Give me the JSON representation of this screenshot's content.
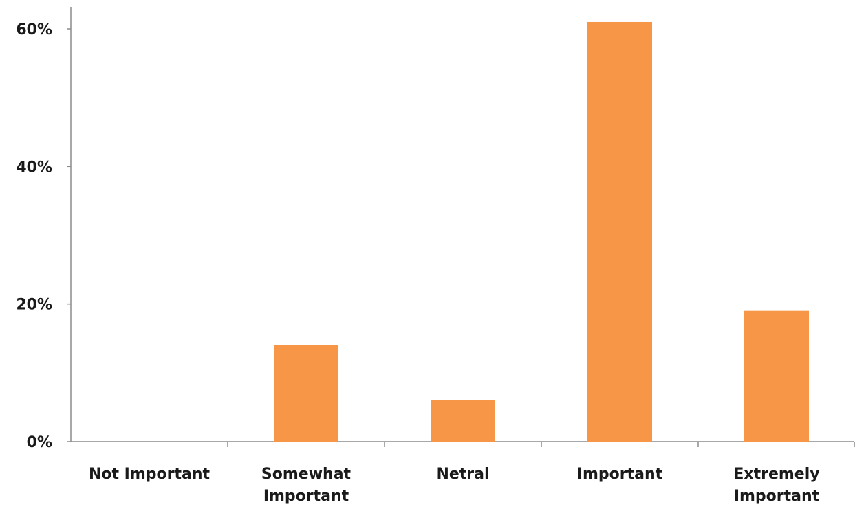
{
  "chart_data": {
    "type": "bar",
    "title": "",
    "xlabel": "",
    "ylabel": "",
    "categories": [
      [
        "Not Important"
      ],
      [
        "Somewhat",
        "Important"
      ],
      [
        "Netral"
      ],
      [
        "Important"
      ],
      [
        "Extremely",
        "Important"
      ]
    ],
    "values": [
      0,
      14,
      6,
      61,
      19
    ],
    "value_unit": "%",
    "ylim": [
      0,
      60
    ],
    "yticks": [
      0,
      20,
      40,
      60
    ],
    "ytick_labels": [
      "0%",
      "20%",
      "40%",
      "60%"
    ],
    "grid": false,
    "legend": "none",
    "bar_color": "#F79646",
    "axis_color": "#8C8C8C"
  }
}
